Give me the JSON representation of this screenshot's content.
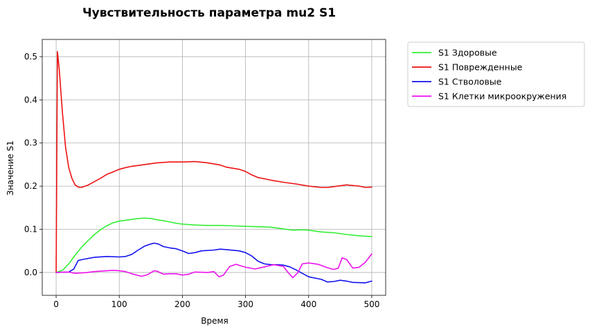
{
  "chart_data": {
    "type": "line",
    "title": "Чувствительность параметра mu2 S1",
    "xlabel": "Время",
    "ylabel": "Значение S1",
    "xlim": [
      -22,
      522
    ],
    "ylim": [
      -0.053,
      0.54
    ],
    "xticks": [
      0,
      100,
      200,
      300,
      400,
      500
    ],
    "yticks": [
      0.0,
      0.1,
      0.2,
      0.3,
      0.4,
      0.5
    ],
    "xtick_labels": [
      "0",
      "100",
      "200",
      "300",
      "400",
      "500"
    ],
    "ytick_labels": [
      "0.0",
      "0.1",
      "0.2",
      "0.3",
      "0.4",
      "0.5"
    ],
    "grid": true,
    "legend_position": "outside-right-top",
    "series": [
      {
        "name": "S1 Здоровые",
        "color": "#33ee33",
        "points": [
          [
            0,
            0.0
          ],
          [
            10,
            0.005
          ],
          [
            20,
            0.02
          ],
          [
            30,
            0.04
          ],
          [
            40,
            0.058
          ],
          [
            50,
            0.073
          ],
          [
            60,
            0.087
          ],
          [
            70,
            0.099
          ],
          [
            80,
            0.108
          ],
          [
            90,
            0.115
          ],
          [
            100,
            0.119
          ],
          [
            110,
            0.121
          ],
          [
            120,
            0.123
          ],
          [
            130,
            0.125
          ],
          [
            140,
            0.126
          ],
          [
            150,
            0.125
          ],
          [
            160,
            0.122
          ],
          [
            170,
            0.12
          ],
          [
            180,
            0.117
          ],
          [
            190,
            0.114
          ],
          [
            200,
            0.112
          ],
          [
            220,
            0.11
          ],
          [
            240,
            0.109
          ],
          [
            260,
            0.109
          ],
          [
            280,
            0.108
          ],
          [
            300,
            0.107
          ],
          [
            320,
            0.106
          ],
          [
            340,
            0.105
          ],
          [
            360,
            0.101
          ],
          [
            375,
            0.098
          ],
          [
            390,
            0.099
          ],
          [
            400,
            0.098
          ],
          [
            420,
            0.094
          ],
          [
            440,
            0.092
          ],
          [
            460,
            0.088
          ],
          [
            480,
            0.085
          ],
          [
            500,
            0.083
          ]
        ]
      },
      {
        "name": "S1 Поврежденные",
        "color": "#ee1111",
        "points": [
          [
            0,
            0.0
          ],
          [
            2,
            0.512
          ],
          [
            5,
            0.47
          ],
          [
            10,
            0.37
          ],
          [
            15,
            0.29
          ],
          [
            20,
            0.243
          ],
          [
            25,
            0.218
          ],
          [
            30,
            0.203
          ],
          [
            35,
            0.198
          ],
          [
            40,
            0.197
          ],
          [
            50,
            0.202
          ],
          [
            60,
            0.21
          ],
          [
            70,
            0.218
          ],
          [
            80,
            0.227
          ],
          [
            90,
            0.233
          ],
          [
            100,
            0.239
          ],
          [
            110,
            0.243
          ],
          [
            120,
            0.246
          ],
          [
            140,
            0.25
          ],
          [
            160,
            0.254
          ],
          [
            180,
            0.256
          ],
          [
            200,
            0.256
          ],
          [
            220,
            0.257
          ],
          [
            240,
            0.254
          ],
          [
            260,
            0.249
          ],
          [
            270,
            0.244
          ],
          [
            290,
            0.239
          ],
          [
            300,
            0.234
          ],
          [
            310,
            0.226
          ],
          [
            320,
            0.22
          ],
          [
            340,
            0.214
          ],
          [
            360,
            0.209
          ],
          [
            380,
            0.205
          ],
          [
            400,
            0.2
          ],
          [
            420,
            0.197
          ],
          [
            430,
            0.197
          ],
          [
            440,
            0.199
          ],
          [
            460,
            0.203
          ],
          [
            480,
            0.2
          ],
          [
            490,
            0.197
          ],
          [
            500,
            0.198
          ]
        ]
      },
      {
        "name": "S1 Стволовые",
        "color": "#1111ee",
        "points": [
          [
            0,
            0.0
          ],
          [
            20,
            0.001
          ],
          [
            28,
            0.008
          ],
          [
            35,
            0.028
          ],
          [
            45,
            0.031
          ],
          [
            60,
            0.035
          ],
          [
            80,
            0.037
          ],
          [
            100,
            0.036
          ],
          [
            110,
            0.037
          ],
          [
            120,
            0.042
          ],
          [
            130,
            0.052
          ],
          [
            140,
            0.061
          ],
          [
            150,
            0.066
          ],
          [
            155,
            0.068
          ],
          [
            162,
            0.066
          ],
          [
            170,
            0.06
          ],
          [
            180,
            0.057
          ],
          [
            190,
            0.055
          ],
          [
            200,
            0.05
          ],
          [
            210,
            0.044
          ],
          [
            220,
            0.046
          ],
          [
            230,
            0.05
          ],
          [
            250,
            0.052
          ],
          [
            260,
            0.054
          ],
          [
            270,
            0.053
          ],
          [
            290,
            0.05
          ],
          [
            300,
            0.046
          ],
          [
            310,
            0.038
          ],
          [
            320,
            0.026
          ],
          [
            330,
            0.02
          ],
          [
            340,
            0.018
          ],
          [
            350,
            0.018
          ],
          [
            360,
            0.017
          ],
          [
            370,
            0.013
          ],
          [
            380,
            0.006
          ],
          [
            390,
            -0.002
          ],
          [
            400,
            -0.01
          ],
          [
            420,
            -0.016
          ],
          [
            430,
            -0.022
          ],
          [
            440,
            -0.021
          ],
          [
            450,
            -0.018
          ],
          [
            460,
            -0.02
          ],
          [
            470,
            -0.023
          ],
          [
            490,
            -0.024
          ],
          [
            500,
            -0.02
          ]
        ]
      },
      {
        "name": "S1 Клетки микроокружения",
        "color": "#ee11ee",
        "points": [
          [
            0,
            0.0
          ],
          [
            20,
            0.001
          ],
          [
            30,
            -0.002
          ],
          [
            50,
            0.0
          ],
          [
            60,
            0.002
          ],
          [
            80,
            0.004
          ],
          [
            90,
            0.005
          ],
          [
            100,
            0.004
          ],
          [
            110,
            0.002
          ],
          [
            120,
            -0.003
          ],
          [
            135,
            -0.009
          ],
          [
            145,
            -0.005
          ],
          [
            155,
            0.004
          ],
          [
            160,
            0.003
          ],
          [
            170,
            -0.004
          ],
          [
            180,
            -0.003
          ],
          [
            190,
            -0.003
          ],
          [
            200,
            -0.006
          ],
          [
            210,
            -0.004
          ],
          [
            220,
            0.001
          ],
          [
            240,
            0.0
          ],
          [
            250,
            0.002
          ],
          [
            258,
            -0.01
          ],
          [
            265,
            -0.006
          ],
          [
            275,
            0.014
          ],
          [
            285,
            0.019
          ],
          [
            300,
            0.012
          ],
          [
            315,
            0.008
          ],
          [
            330,
            0.013
          ],
          [
            345,
            0.018
          ],
          [
            360,
            0.014
          ],
          [
            368,
            -0.001
          ],
          [
            375,
            -0.012
          ],
          [
            383,
            0.0
          ],
          [
            390,
            0.02
          ],
          [
            400,
            0.022
          ],
          [
            415,
            0.019
          ],
          [
            430,
            0.011
          ],
          [
            440,
            0.007
          ],
          [
            447,
            0.01
          ],
          [
            453,
            0.034
          ],
          [
            460,
            0.03
          ],
          [
            470,
            0.01
          ],
          [
            480,
            0.012
          ],
          [
            490,
            0.024
          ],
          [
            500,
            0.043
          ]
        ]
      }
    ]
  }
}
